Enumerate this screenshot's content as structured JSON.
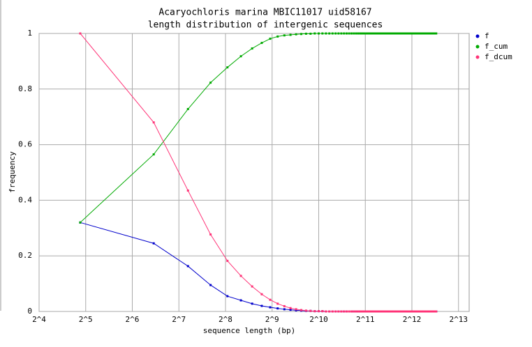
{
  "chart_data": {
    "type": "line",
    "title": "Acaryochloris marina MBIC11017 uid58167",
    "subtitle": "length distribution of intergenic sequences",
    "x_label": "sequence length (bp)",
    "y_label": "frequency",
    "x_scale": "log2",
    "grid": true,
    "legend": "right",
    "xlim": [
      16,
      9600
    ],
    "ylim": [
      0,
      1
    ],
    "xticks": [
      {
        "value": 16,
        "label": "2^4"
      },
      {
        "value": 32,
        "label": "2^5"
      },
      {
        "value": 64,
        "label": "2^6"
      },
      {
        "value": 128,
        "label": "2^7"
      },
      {
        "value": 256,
        "label": "2^8"
      },
      {
        "value": 512,
        "label": "2^9"
      },
      {
        "value": 1024,
        "label": "2^10"
      },
      {
        "value": 2048,
        "label": "2^11"
      },
      {
        "value": 4096,
        "label": "2^12"
      },
      {
        "value": 8192,
        "label": "2^13"
      }
    ],
    "yticks": [
      0,
      0.2,
      0.4,
      0.6,
      0.8,
      1
    ],
    "x": [
      29.5,
      88,
      146.5,
      205,
      263.5,
      322,
      380.5,
      439,
      497.5,
      556,
      614.5,
      673,
      731.5,
      790,
      848.5,
      907,
      965.5,
      1024,
      1082.5,
      1141,
      1199.5,
      1258,
      1316.5,
      1375,
      1433.5,
      1492,
      1550.5,
      1609,
      1667.5,
      1726,
      1784.5,
      1843,
      1901.5,
      1960,
      2018.5,
      2077,
      2135.5,
      2194,
      2252.5,
      2311,
      2369.5,
      2428,
      2486.5,
      2545,
      2603.5,
      2662,
      2720.5,
      2779,
      2837.5,
      2896,
      2954.5,
      3013,
      3071.5,
      3130,
      3188.5,
      3247,
      3305.5,
      3364,
      3422.5,
      3481,
      3539.5,
      3598,
      3656.5,
      3715,
      3773.5,
      3832,
      3890.5,
      3949,
      4007.5,
      4066,
      4124.5,
      4183,
      4241.5,
      4300,
      4358.5,
      4417,
      4475.5,
      4534,
      4592.5,
      4651,
      4709.5,
      4768,
      4826.5,
      4885,
      4943.5,
      5002,
      5060.5,
      5119,
      5177.5,
      5236,
      5294.5,
      5353,
      5411.5,
      5470,
      5528.5,
      5587,
      5645.5,
      5704,
      5762.5,
      5821,
      5879.5
    ],
    "series": [
      {
        "name": "f",
        "color": "#0000cc",
        "values": [
          0.32,
          0.245,
          0.163,
          0.095,
          0.055,
          0.04,
          0.028,
          0.02,
          0.015,
          0.011,
          0.008,
          0.006,
          0.004,
          0.003,
          0.002,
          0.002,
          0.001,
          0.001,
          0.001,
          0,
          0,
          0,
          0,
          0,
          0,
          0,
          0,
          0,
          0,
          0,
          0,
          0,
          0,
          0,
          0,
          0,
          0,
          0,
          0,
          0,
          0,
          0,
          0,
          0,
          0,
          0,
          0,
          0,
          0,
          0,
          0,
          0,
          0,
          0,
          0,
          0,
          0,
          0,
          0,
          0,
          0,
          0,
          0,
          0,
          0,
          0,
          0,
          0,
          0,
          0,
          0,
          0,
          0,
          0,
          0,
          0,
          0,
          0,
          0,
          0,
          0,
          0,
          0,
          0,
          0,
          0,
          0,
          0,
          0,
          0,
          0,
          0,
          0,
          0,
          0,
          0,
          0,
          0,
          0,
          0,
          0
        ]
      },
      {
        "name": "f_cum",
        "color": "#00aa00",
        "values": [
          0.32,
          0.565,
          0.728,
          0.823,
          0.878,
          0.918,
          0.946,
          0.966,
          0.981,
          0.989,
          0.993,
          0.995,
          0.997,
          0.998,
          0.999,
          0.999,
          1,
          1,
          1,
          1,
          1,
          1,
          1,
          1,
          1,
          1,
          1,
          1,
          1,
          1,
          1,
          1,
          1,
          1,
          1,
          1,
          1,
          1,
          1,
          1,
          1,
          1,
          1,
          1,
          1,
          1,
          1,
          1,
          1,
          1,
          1,
          1,
          1,
          1,
          1,
          1,
          1,
          1,
          1,
          1,
          1,
          1,
          1,
          1,
          1,
          1,
          1,
          1,
          1,
          1,
          1,
          1,
          1,
          1,
          1,
          1,
          1,
          1,
          1,
          1,
          1,
          1,
          1,
          1,
          1,
          1,
          1,
          1,
          1,
          1,
          1,
          1,
          1,
          1,
          1,
          1,
          1,
          1,
          1,
          1,
          1
        ]
      },
      {
        "name": "f_dcum",
        "color": "#ff3377",
        "values": [
          1,
          0.68,
          0.435,
          0.277,
          0.182,
          0.128,
          0.09,
          0.062,
          0.042,
          0.028,
          0.019,
          0.012,
          0.008,
          0.005,
          0.003,
          0.002,
          0.001,
          0.001,
          0.001,
          0,
          0,
          0,
          0,
          0,
          0,
          0,
          0,
          0,
          0,
          0,
          0,
          0,
          0,
          0,
          0,
          0,
          0,
          0,
          0,
          0,
          0,
          0,
          0,
          0,
          0,
          0,
          0,
          0,
          0,
          0,
          0,
          0,
          0,
          0,
          0,
          0,
          0,
          0,
          0,
          0,
          0,
          0,
          0,
          0,
          0,
          0,
          0,
          0,
          0,
          0,
          0,
          0,
          0,
          0,
          0,
          0,
          0,
          0,
          0,
          0,
          0,
          0,
          0,
          0,
          0,
          0,
          0,
          0,
          0,
          0,
          0,
          0,
          0,
          0,
          0,
          0,
          0,
          0,
          0,
          0,
          0
        ]
      }
    ]
  }
}
